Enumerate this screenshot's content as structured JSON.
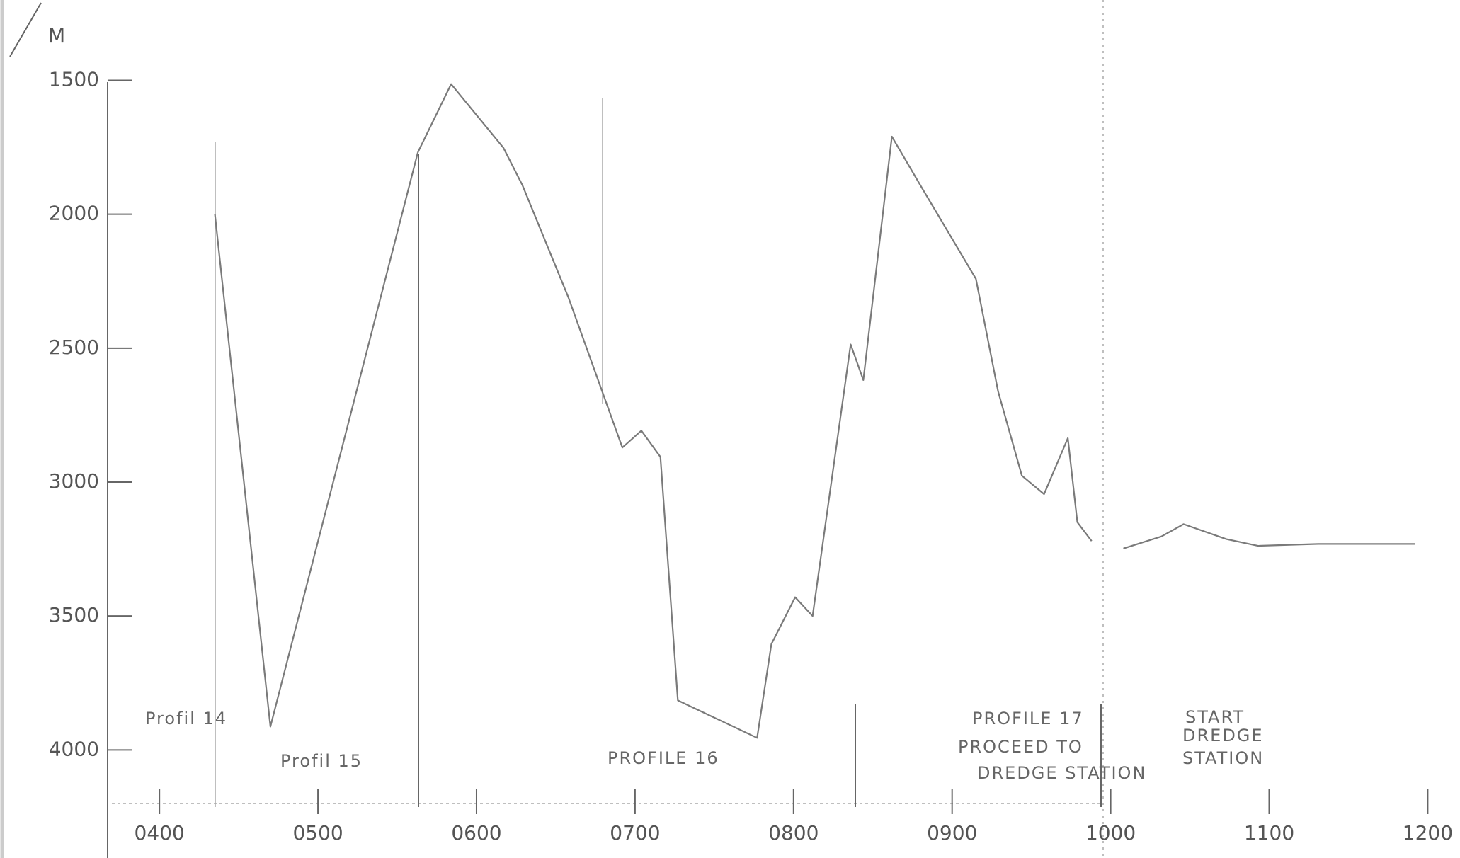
{
  "chart_data": {
    "type": "line",
    "y_label": "M",
    "x": [
      4.35,
      4.7,
      5.63,
      null,
      5.63,
      5.84,
      6.17,
      6.29,
      6.58,
      6.92,
      7.04,
      7.16,
      7.27,
      7.77,
      7.86,
      8.01,
      8.12,
      8.36,
      8.44,
      8.62,
      8.8,
      9.15,
      9.29,
      9.44,
      9.58,
      9.73,
      9.79,
      9.88,
      null,
      10.08,
      10.32,
      10.46,
      10.73,
      10.93,
      11.31,
      11.92
    ],
    "values": [
      2000,
      3913,
      1769,
      null,
      1769,
      1514,
      1752,
      1892,
      2311,
      2871,
      2808,
      2906,
      3815,
      3955,
      3605,
      3430,
      3500,
      2486,
      2619,
      1710,
      1892,
      2241,
      2661,
      2976,
      3045,
      2836,
      3150,
      3220,
      null,
      3248,
      3203,
      3157,
      3213,
      3238,
      3231,
      3231
    ],
    "color": "#7a7a7a",
    "xlim": [
      3.7,
      12.15
    ],
    "ylim": [
      4200,
      1200
    ],
    "yticks": [
      1500,
      2000,
      2500,
      3000,
      3500,
      4000
    ],
    "xticks": [
      {
        "value": 4,
        "label": "0400"
      },
      {
        "value": 5,
        "label": "0500"
      },
      {
        "value": 6,
        "label": "0600"
      },
      {
        "value": 7,
        "label": "0700"
      },
      {
        "value": 8,
        "label": "0800"
      },
      {
        "value": 9,
        "label": "0900"
      },
      {
        "value": 10,
        "label": "1000"
      },
      {
        "value": 11,
        "label": "1100"
      },
      {
        "value": 12,
        "label": "1200"
      }
    ],
    "annotations": [
      "Profil 14",
      "Profil 15",
      "PROFILE 16",
      "PROFILE 17",
      "PROCEED TO",
      "DREDGE STATION",
      "START",
      "DREDGE",
      "STATION"
    ]
  }
}
